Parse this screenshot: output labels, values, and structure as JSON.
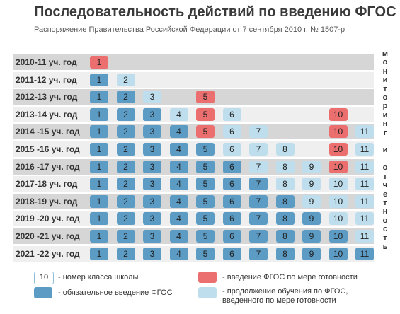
{
  "title": "Последовательность действий по введению ФГОС",
  "subtitle": "Распоряжение Правительства Российской Федерации от 7 сентября 2010 г. № 1507-р",
  "side_label": "мониторинг и отчетность",
  "colors": {
    "mandatory": "#5b9bc4",
    "readiness": "#ec6f6f",
    "continued": "#bedeed"
  },
  "chart_data": {
    "type": "table",
    "rows": [
      {
        "year": "2010-11 уч. год",
        "cells": [
          {
            "grade": "1",
            "status": "readiness"
          }
        ]
      },
      {
        "year": "2011-12 уч. год",
        "cells": [
          {
            "grade": "1",
            "status": "mandatory"
          },
          {
            "grade": "2",
            "status": "continued"
          }
        ]
      },
      {
        "year": "2012-13 уч. год",
        "cells": [
          {
            "grade": "1",
            "status": "mandatory"
          },
          {
            "grade": "2",
            "status": "mandatory"
          },
          {
            "grade": "3",
            "status": "continued"
          },
          {
            "grade": "5",
            "status": "readiness"
          }
        ]
      },
      {
        "year": "2013-14 уч. год",
        "cells": [
          {
            "grade": "1",
            "status": "mandatory"
          },
          {
            "grade": "2",
            "status": "mandatory"
          },
          {
            "grade": "3",
            "status": "mandatory"
          },
          {
            "grade": "4",
            "status": "continued"
          },
          {
            "grade": "5",
            "status": "readiness"
          },
          {
            "grade": "6",
            "status": "continued"
          },
          {
            "grade": "10",
            "status": "readiness"
          }
        ]
      },
      {
        "year": "2014 -15 уч. год",
        "cells": [
          {
            "grade": "1",
            "status": "mandatory"
          },
          {
            "grade": "2",
            "status": "mandatory"
          },
          {
            "grade": "3",
            "status": "mandatory"
          },
          {
            "grade": "4",
            "status": "mandatory"
          },
          {
            "grade": "5",
            "status": "readiness"
          },
          {
            "grade": "6",
            "status": "continued"
          },
          {
            "grade": "7",
            "status": "continued"
          },
          {
            "grade": "10",
            "status": "readiness"
          },
          {
            "grade": "11",
            "status": "continued"
          }
        ]
      },
      {
        "year": "2015 -16 уч. год",
        "cells": [
          {
            "grade": "1",
            "status": "mandatory"
          },
          {
            "grade": "2",
            "status": "mandatory"
          },
          {
            "grade": "3",
            "status": "mandatory"
          },
          {
            "grade": "4",
            "status": "mandatory"
          },
          {
            "grade": "5",
            "status": "mandatory"
          },
          {
            "grade": "6",
            "status": "continued"
          },
          {
            "grade": "7",
            "status": "continued"
          },
          {
            "grade": "8",
            "status": "continued"
          },
          {
            "grade": "10",
            "status": "readiness"
          },
          {
            "grade": "11",
            "status": "continued"
          }
        ]
      },
      {
        "year": "2016 -17 уч. год",
        "cells": [
          {
            "grade": "1",
            "status": "mandatory"
          },
          {
            "grade": "2",
            "status": "mandatory"
          },
          {
            "grade": "3",
            "status": "mandatory"
          },
          {
            "grade": "4",
            "status": "mandatory"
          },
          {
            "grade": "5",
            "status": "mandatory"
          },
          {
            "grade": "6",
            "status": "mandatory"
          },
          {
            "grade": "7",
            "status": "continued"
          },
          {
            "grade": "8",
            "status": "continued"
          },
          {
            "grade": "9",
            "status": "continued"
          },
          {
            "grade": "10",
            "status": "readiness"
          },
          {
            "grade": "11",
            "status": "continued"
          }
        ]
      },
      {
        "year": "2017-18 уч. год",
        "cells": [
          {
            "grade": "1",
            "status": "mandatory"
          },
          {
            "grade": "2",
            "status": "mandatory"
          },
          {
            "grade": "3",
            "status": "mandatory"
          },
          {
            "grade": "4",
            "status": "mandatory"
          },
          {
            "grade": "5",
            "status": "mandatory"
          },
          {
            "grade": "6",
            "status": "mandatory"
          },
          {
            "grade": "7",
            "status": "mandatory"
          },
          {
            "grade": "8",
            "status": "continued"
          },
          {
            "grade": "9",
            "status": "continued"
          },
          {
            "grade": "10",
            "status": "continued"
          },
          {
            "grade": "11",
            "status": "continued"
          }
        ]
      },
      {
        "year": "2018-19 уч. год",
        "cells": [
          {
            "grade": "1",
            "status": "mandatory"
          },
          {
            "grade": "2",
            "status": "mandatory"
          },
          {
            "grade": "3",
            "status": "mandatory"
          },
          {
            "grade": "4",
            "status": "mandatory"
          },
          {
            "grade": "5",
            "status": "mandatory"
          },
          {
            "grade": "6",
            "status": "mandatory"
          },
          {
            "grade": "7",
            "status": "mandatory"
          },
          {
            "grade": "8",
            "status": "mandatory"
          },
          {
            "grade": "9",
            "status": "continued"
          },
          {
            "grade": "10",
            "status": "continued"
          },
          {
            "grade": "11",
            "status": "continued"
          }
        ]
      },
      {
        "year": "2019 -20 уч. год",
        "cells": [
          {
            "grade": "1",
            "status": "mandatory"
          },
          {
            "grade": "2",
            "status": "mandatory"
          },
          {
            "grade": "3",
            "status": "mandatory"
          },
          {
            "grade": "4",
            "status": "mandatory"
          },
          {
            "grade": "5",
            "status": "mandatory"
          },
          {
            "grade": "6",
            "status": "mandatory"
          },
          {
            "grade": "7",
            "status": "mandatory"
          },
          {
            "grade": "8",
            "status": "mandatory"
          },
          {
            "grade": "9",
            "status": "mandatory"
          },
          {
            "grade": "10",
            "status": "continued"
          },
          {
            "grade": "11",
            "status": "continued"
          }
        ]
      },
      {
        "year": "2020 -21 уч. год",
        "cells": [
          {
            "grade": "1",
            "status": "mandatory"
          },
          {
            "grade": "2",
            "status": "mandatory"
          },
          {
            "grade": "3",
            "status": "mandatory"
          },
          {
            "grade": "4",
            "status": "mandatory"
          },
          {
            "grade": "5",
            "status": "mandatory"
          },
          {
            "grade": "6",
            "status": "mandatory"
          },
          {
            "grade": "7",
            "status": "mandatory"
          },
          {
            "grade": "8",
            "status": "mandatory"
          },
          {
            "grade": "9",
            "status": "mandatory"
          },
          {
            "grade": "10",
            "status": "mandatory"
          },
          {
            "grade": "11",
            "status": "continued"
          }
        ]
      },
      {
        "year": "2021 -22 уч. год",
        "cells": [
          {
            "grade": "1",
            "status": "mandatory"
          },
          {
            "grade": "2",
            "status": "mandatory"
          },
          {
            "grade": "3",
            "status": "mandatory"
          },
          {
            "grade": "4",
            "status": "mandatory"
          },
          {
            "grade": "5",
            "status": "mandatory"
          },
          {
            "grade": "6",
            "status": "mandatory"
          },
          {
            "grade": "7",
            "status": "mandatory"
          },
          {
            "grade": "8",
            "status": "mandatory"
          },
          {
            "grade": "9",
            "status": "mandatory"
          },
          {
            "grade": "10",
            "status": "mandatory"
          },
          {
            "grade": "11",
            "status": "mandatory"
          }
        ]
      }
    ]
  },
  "legend": {
    "grade_box": "10",
    "grade_text": "- номер класса школы",
    "mandatory_text": "- обязательное введение ФГОС",
    "readiness_text": "- введение ФГОС по мере готовности",
    "continued_text": "- продолжение обучения по ФГОС, введенного по мере готовности"
  }
}
